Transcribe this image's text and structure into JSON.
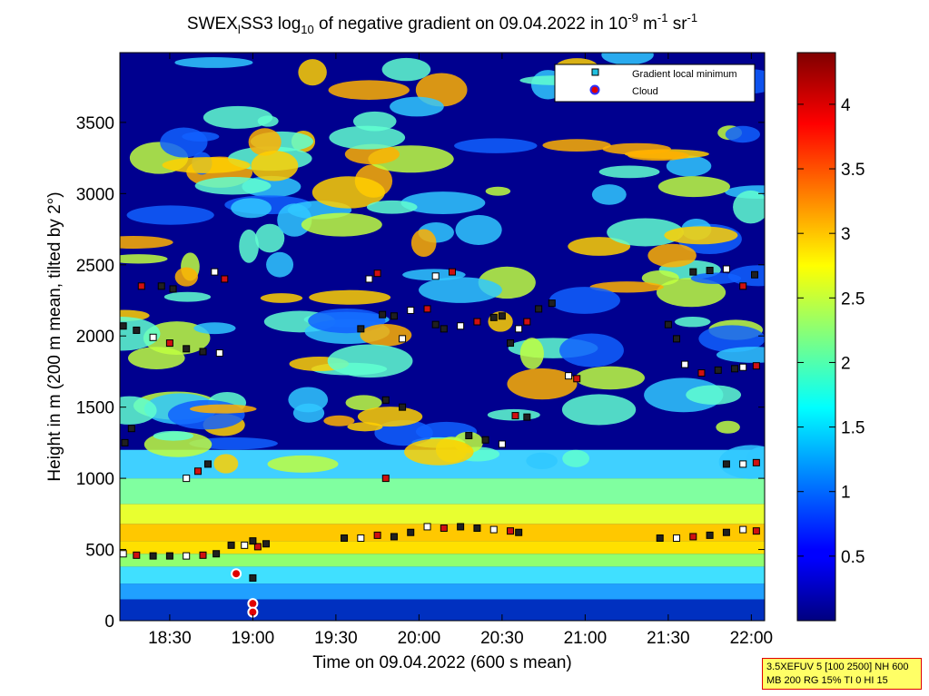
{
  "chart_data": {
    "type": "heatmap",
    "title": {
      "before": "SWEX",
      "sub1": "l",
      "mid": "SS3 log",
      "sub2": "10",
      "after": " of negative gradient on 09.04.2022 in 10",
      "sup1": "-9",
      "unit_mid": " m",
      "sup2": "-1",
      "unit_end": " sr",
      "sup3": "-1"
    },
    "xlabel": "Time on 09.04.2022 (600 s mean)",
    "ylabel": "Height in m (200 m mean, tilted by 2°)",
    "x_range_hours": [
      18.2,
      22.08
    ],
    "x_ticks": [
      {
        "h": 18.5,
        "label": "18:30"
      },
      {
        "h": 19.0,
        "label": "19:00"
      },
      {
        "h": 19.5,
        "label": "19:30"
      },
      {
        "h": 20.0,
        "label": "20:00"
      },
      {
        "h": 20.5,
        "label": "20:30"
      },
      {
        "h": 21.0,
        "label": "21:00"
      },
      {
        "h": 21.5,
        "label": "21:30"
      },
      {
        "h": 22.0,
        "label": "22:00"
      }
    ],
    "y_range": [
      0,
      3990
    ],
    "y_ticks": [
      0,
      500,
      1000,
      1500,
      2000,
      2500,
      3000,
      3500
    ],
    "colorbar": {
      "range": [
        0,
        4.4
      ],
      "ticks": [
        0.5,
        1,
        1.5,
        2,
        2.5,
        3,
        3.5,
        4
      ],
      "tick_labels": [
        "0.5",
        "1",
        "1.5",
        "2",
        "2.5",
        "3",
        "3.5",
        "4"
      ],
      "colormap": "jet"
    },
    "legend": {
      "position": "top-right",
      "entries": [
        {
          "label": "Gradient local minimum",
          "marker": "square",
          "color": "#20c0e0"
        },
        {
          "label": "Cloud",
          "marker": "circle",
          "color": "#e00000",
          "edge": "#3030ff"
        }
      ]
    },
    "series": [
      {
        "name": "Gradient local minimum",
        "points": [
          [
            18.22,
            470
          ],
          [
            18.3,
            460
          ],
          [
            18.4,
            455
          ],
          [
            18.5,
            455
          ],
          [
            18.6,
            455
          ],
          [
            18.7,
            460
          ],
          [
            18.78,
            470
          ],
          [
            18.87,
            530
          ],
          [
            18.95,
            530
          ],
          [
            19.03,
            520
          ],
          [
            19.08,
            540
          ],
          [
            19.55,
            580
          ],
          [
            19.65,
            580
          ],
          [
            19.75,
            600
          ],
          [
            19.85,
            590
          ],
          [
            19.95,
            620
          ],
          [
            20.05,
            660
          ],
          [
            20.15,
            650
          ],
          [
            20.25,
            660
          ],
          [
            20.35,
            650
          ],
          [
            20.45,
            640
          ],
          [
            20.55,
            630
          ],
          [
            20.6,
            620
          ],
          [
            21.45,
            580
          ],
          [
            21.55,
            580
          ],
          [
            21.65,
            590
          ],
          [
            21.75,
            600
          ],
          [
            21.85,
            620
          ],
          [
            21.95,
            640
          ],
          [
            22.03,
            630
          ],
          [
            18.22,
            2070
          ],
          [
            18.3,
            2040
          ],
          [
            18.4,
            1990
          ],
          [
            18.5,
            1950
          ],
          [
            18.6,
            1910
          ],
          [
            18.7,
            1890
          ],
          [
            18.8,
            1880
          ],
          [
            18.33,
            2350
          ],
          [
            18.45,
            2350
          ],
          [
            18.52,
            2330
          ],
          [
            18.77,
            2450
          ],
          [
            18.83,
            2400
          ],
          [
            18.23,
            1250
          ],
          [
            18.27,
            1350
          ],
          [
            18.6,
            1000
          ],
          [
            18.67,
            1050
          ],
          [
            18.73,
            1100
          ],
          [
            19.65,
            2050
          ],
          [
            19.7,
            2400
          ],
          [
            19.75,
            2440
          ],
          [
            19.78,
            2150
          ],
          [
            19.85,
            2140
          ],
          [
            19.95,
            2180
          ],
          [
            20.05,
            2190
          ],
          [
            20.1,
            2080
          ],
          [
            20.15,
            2050
          ],
          [
            20.25,
            2070
          ],
          [
            20.35,
            2100
          ],
          [
            20.45,
            2130
          ],
          [
            20.5,
            2140
          ],
          [
            20.1,
            2420
          ],
          [
            20.2,
            2450
          ],
          [
            20.3,
            1300
          ],
          [
            20.4,
            1270
          ],
          [
            20.5,
            1240
          ],
          [
            20.58,
            1440
          ],
          [
            20.65,
            1430
          ],
          [
            20.55,
            1950
          ],
          [
            20.6,
            2050
          ],
          [
            20.65,
            2100
          ],
          [
            20.72,
            2190
          ],
          [
            20.8,
            2230
          ],
          [
            20.9,
            1720
          ],
          [
            20.95,
            1700
          ],
          [
            21.5,
            2080
          ],
          [
            21.55,
            1980
          ],
          [
            21.6,
            1800
          ],
          [
            21.7,
            1740
          ],
          [
            21.8,
            1760
          ],
          [
            21.9,
            1770
          ],
          [
            21.95,
            1780
          ],
          [
            22.03,
            1790
          ],
          [
            21.65,
            2450
          ],
          [
            21.75,
            2460
          ],
          [
            21.85,
            2470
          ],
          [
            21.95,
            2350
          ],
          [
            22.02,
            2430
          ],
          [
            21.85,
            1100
          ],
          [
            21.95,
            1100
          ],
          [
            22.03,
            1110
          ],
          [
            19.8,
            1550
          ],
          [
            19.9,
            1500
          ],
          [
            19.9,
            1980
          ],
          [
            19.8,
            1000
          ],
          [
            19.0,
            560
          ],
          [
            19.0,
            300
          ]
        ]
      },
      {
        "name": "Cloud",
        "points": [
          [
            18.9,
            330
          ],
          [
            19.0,
            120
          ],
          [
            19.0,
            60
          ]
        ]
      }
    ]
  },
  "info_box": {
    "line1": "3.5XEFUV 5 [100 2500] NH 600",
    "line2": "MB 200 RG 15% TI 0 HI 15"
  }
}
